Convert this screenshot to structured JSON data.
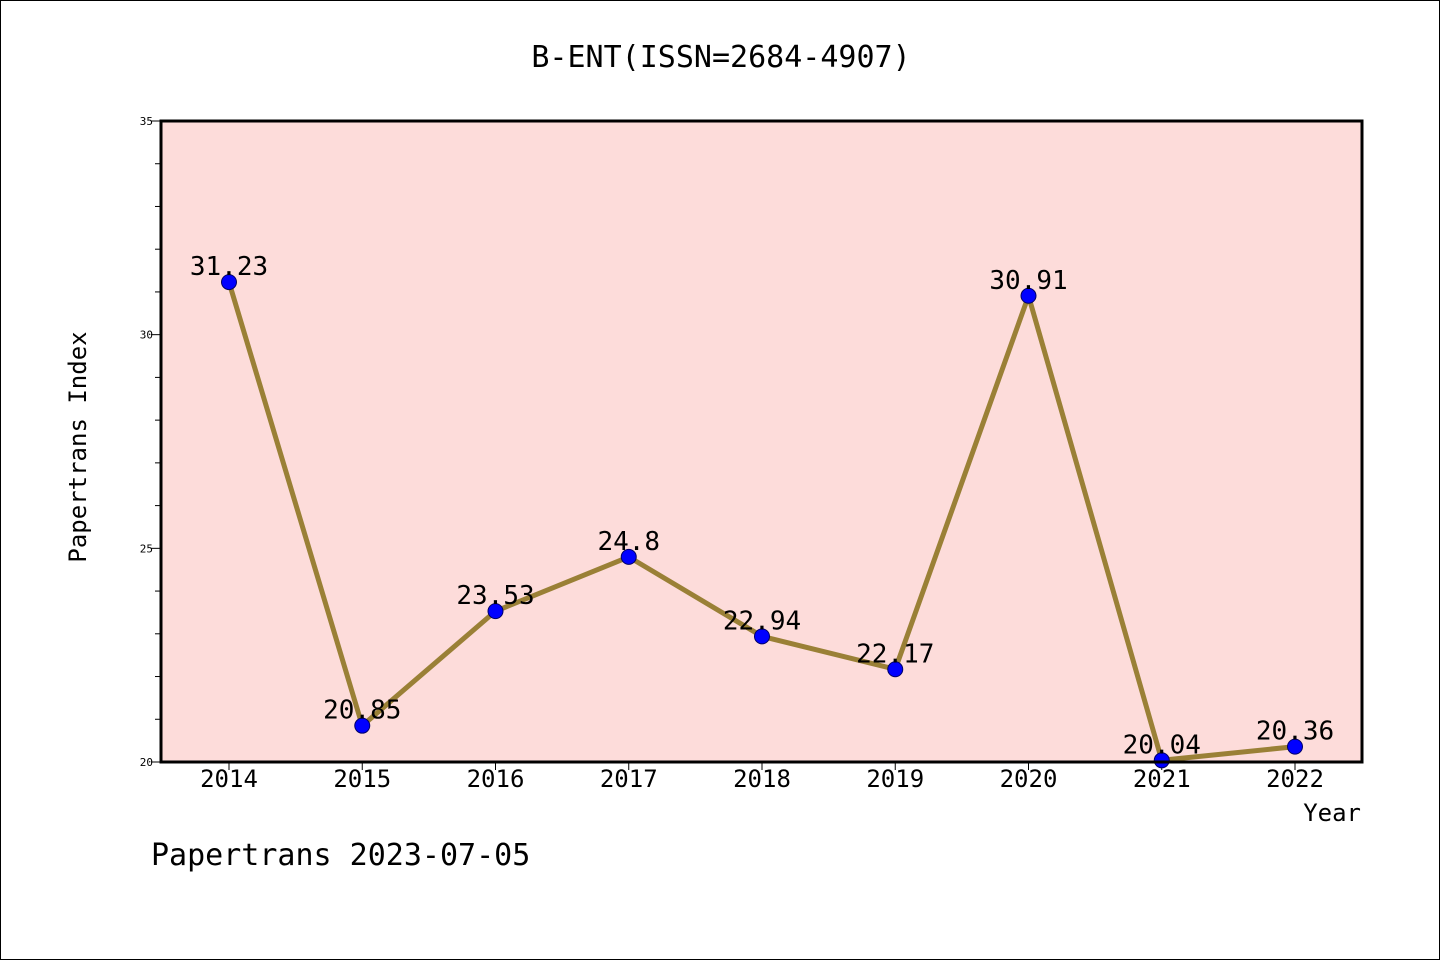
{
  "chart_data": {
    "type": "line",
    "title": "B-ENT(ISSN=2684-4907)",
    "xlabel": "Year",
    "ylabel": "Papertrans Index",
    "categories": [
      "2014",
      "2015",
      "2016",
      "2017",
      "2018",
      "2019",
      "2020",
      "2021",
      "2022"
    ],
    "series": [
      {
        "values": [
          31.23,
          20.85,
          23.53,
          24.8,
          22.94,
          22.17,
          30.91,
          20.04,
          20.36
        ],
        "labels": [
          "31.23",
          "20.85",
          "23.53",
          "24.8",
          "22.94",
          "22.17",
          "30.91",
          "20.04",
          "20.36"
        ]
      }
    ],
    "ylim": [
      20,
      35
    ],
    "yticks": [
      20,
      25,
      30,
      35
    ],
    "yminor_step": 1,
    "grid": false,
    "legend": "none",
    "colors": {
      "plot_background": "#FDDCDA",
      "line": "#9A8036",
      "marker": "#0000FF",
      "marker_edge": "#000066",
      "axis": "#000000"
    }
  },
  "footer": {
    "stamp": "Papertrans 2023-07-05"
  }
}
